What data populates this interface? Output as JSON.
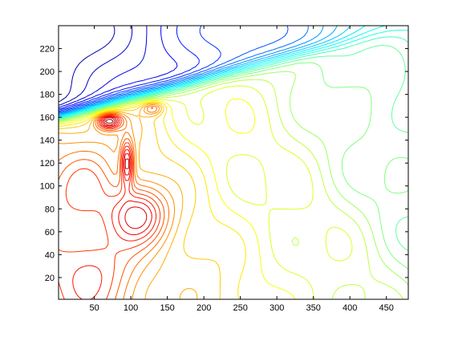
{
  "chart_data": {
    "type": "contour",
    "title": "",
    "xlabel": "",
    "ylabel": "",
    "xlim": [
      1,
      480
    ],
    "ylim": [
      1,
      240
    ],
    "grid": false,
    "legend": "none",
    "xticks": [
      50,
      100,
      150,
      200,
      250,
      300,
      350,
      400,
      450
    ],
    "yticks": [
      20,
      40,
      60,
      80,
      100,
      120,
      140,
      160,
      180,
      200,
      220
    ],
    "colormap": "jet",
    "colormap_stops": [
      "#00008f",
      "#0000ff",
      "#00ffff",
      "#ffff00",
      "#ff0000",
      "#800000"
    ],
    "features": [
      {
        "x": 70,
        "y": 157,
        "amplitude": 1.0,
        "sx": 12,
        "sy": 5
      },
      {
        "x": 95,
        "y": 120,
        "amplitude": 0.8,
        "sx": 6,
        "sy": 14
      },
      {
        "x": 110,
        "y": 75,
        "amplitude": 0.7,
        "sx": 28,
        "sy": 18
      },
      {
        "x": 130,
        "y": 168,
        "amplitude": 0.5,
        "sx": 10,
        "sy": 4
      },
      {
        "x": 40,
        "y": 100,
        "amplitude": 0.35,
        "sx": 30,
        "sy": 25
      },
      {
        "x": 60,
        "y": 30,
        "amplitude": 0.3,
        "sx": 40,
        "sy": 25
      }
    ],
    "ridge": {
      "from": [
        10,
        162
      ],
      "to": [
        480,
        240
      ],
      "note": "steep front separating low (blue) region above from higher field below"
    }
  }
}
